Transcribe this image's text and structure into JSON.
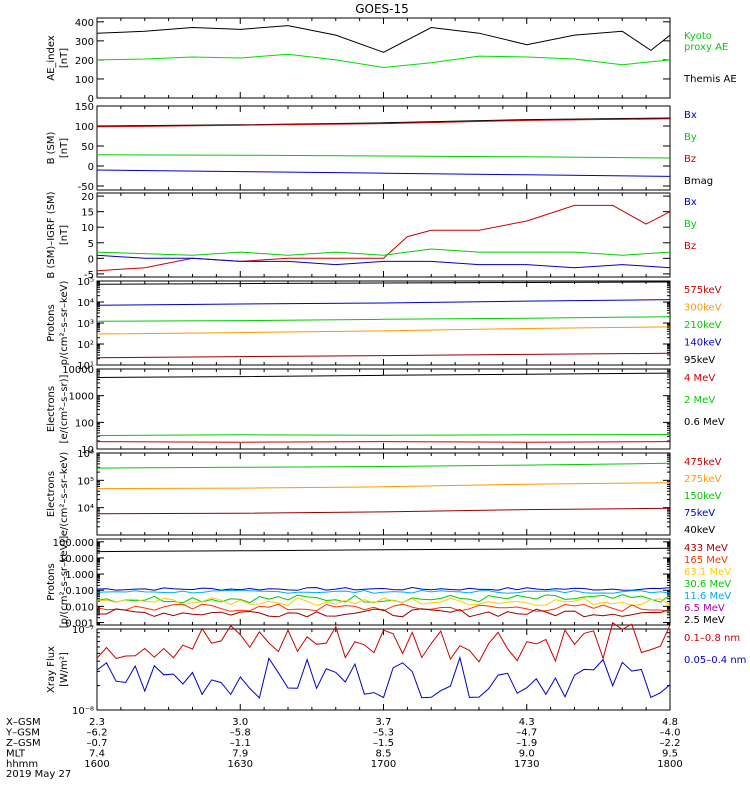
{
  "chart_data": {
    "type": "line",
    "title": "GOES-15",
    "x_ticks": [
      "1600",
      "1630",
      "1700",
      "1730",
      "1800"
    ],
    "xlim": [
      "1600",
      "1800"
    ],
    "panels": [
      {
        "ylabel": [
          "AE_index",
          "[nT]"
        ],
        "scale": "linear",
        "ylim": [
          0,
          420
        ],
        "yticks": [
          "400",
          "300",
          "200",
          "100",
          "0"
        ],
        "yticks_values": [
          400,
          300,
          200,
          100,
          0
        ],
        "legend": [
          {
            "text": "Kyoto",
            "color": "#00cc00"
          },
          {
            "text": "proxy AE",
            "color": "#00cc00"
          },
          {
            "text": "Themis AE",
            "color": "#000000"
          }
        ],
        "series": [
          {
            "color": "#000000",
            "x": [
              "1600",
              "1610",
              "1620",
              "1630",
              "1640",
              "1650",
              "1700",
              "1710",
              "1720",
              "1730",
              "1740",
              "1750",
              "1756",
              "1800"
            ],
            "values": [
              340,
              350,
              370,
              360,
              380,
              330,
              240,
              370,
              340,
              280,
              330,
              350,
              250,
              330
            ]
          },
          {
            "color": "#00dd00",
            "x": [
              "1600",
              "1610",
              "1620",
              "1630",
              "1640",
              "1650",
              "1700",
              "1710",
              "1720",
              "1730",
              "1740",
              "1750",
              "1800"
            ],
            "values": [
              200,
              205,
              215,
              210,
              230,
              200,
              160,
              185,
              220,
              215,
              205,
              175,
              200
            ]
          }
        ]
      },
      {
        "ylabel": [
          "B (SM)",
          "[nT]"
        ],
        "scale": "linear",
        "ylim": [
          -60,
          150
        ],
        "yticks": [
          "150",
          "100",
          "50",
          "0",
          "-50"
        ],
        "yticks_values": [
          150,
          100,
          50,
          0,
          -50
        ],
        "legend": [
          {
            "text": "Bx",
            "color": "#0000cc"
          },
          {
            "text": "By",
            "color": "#00cc00"
          },
          {
            "text": "Bz",
            "color": "#cc0000"
          },
          {
            "text": "Bmag",
            "color": "#000000"
          }
        ],
        "series": [
          {
            "color": "#000000",
            "x": [
              "1600",
              "1630",
              "1700",
              "1730",
              "1800"
            ],
            "values": [
              100,
              103,
              108,
              116,
              120
            ]
          },
          {
            "color": "#cc0000",
            "x": [
              "1600",
              "1630",
              "1700",
              "1730",
              "1800"
            ],
            "values": [
              98,
              102,
              106,
              114,
              118
            ]
          },
          {
            "color": "#00cc00",
            "x": [
              "1600",
              "1630",
              "1700",
              "1730",
              "1800"
            ],
            "values": [
              28,
              27,
              25,
              23,
              20
            ]
          },
          {
            "color": "#0000cc",
            "x": [
              "1600",
              "1630",
              "1700",
              "1730",
              "1800"
            ],
            "values": [
              -10,
              -14,
              -18,
              -22,
              -26
            ]
          }
        ]
      },
      {
        "ylabel": [
          "B (SM)–IGRF (SM)",
          "[nT]"
        ],
        "scale": "linear",
        "ylim": [
          -6,
          21
        ],
        "yticks": [
          "20",
          "15",
          "10",
          "5",
          "0",
          "-5"
        ],
        "yticks_values": [
          20,
          15,
          10,
          5,
          0,
          -5
        ],
        "legend": [
          {
            "text": "Bx",
            "color": "#0000cc"
          },
          {
            "text": "By",
            "color": "#00cc00"
          },
          {
            "text": "Bz",
            "color": "#cc0000"
          }
        ],
        "series": [
          {
            "color": "#cc0000",
            "x": [
              "1600",
              "1610",
              "1620",
              "1630",
              "1640",
              "1650",
              "1700",
              "1705",
              "1710",
              "1720",
              "1730",
              "1740",
              "1748",
              "1755",
              "1800"
            ],
            "values": [
              -4,
              -3,
              0,
              -1,
              0,
              0,
              0,
              7,
              9,
              9,
              12,
              17,
              17,
              11,
              15
            ]
          },
          {
            "color": "#00cc00",
            "x": [
              "1600",
              "1620",
              "1630",
              "1640",
              "1650",
              "1700",
              "1710",
              "1720",
              "1730",
              "1740",
              "1750",
              "1800"
            ],
            "values": [
              2,
              1,
              2,
              1,
              2,
              1,
              3,
              2,
              2,
              2,
              1,
              2
            ]
          },
          {
            "color": "#0000cc",
            "x": [
              "1600",
              "1610",
              "1620",
              "1630",
              "1640",
              "1650",
              "1700",
              "1710",
              "1720",
              "1730",
              "1740",
              "1750",
              "1800"
            ],
            "values": [
              1,
              0,
              0,
              -1,
              -1,
              -2,
              -1,
              -1,
              -2,
              -2,
              -3,
              -2,
              -3
            ]
          }
        ]
      },
      {
        "ylabel": [
          "Protons",
          "p/(cm²–s–sr–keV)"
        ],
        "scale": "log",
        "ylim": [
          10,
          100000
        ],
        "yticks": [
          "10⁵",
          "10⁴",
          "10³",
          "10²",
          "10¹"
        ],
        "yticks_values": [
          100000,
          10000,
          1000,
          100,
          10
        ],
        "legend": [
          {
            "text": "575keV",
            "color": "#cc0000"
          },
          {
            "text": "300keV",
            "color": "#ff9900"
          },
          {
            "text": "210keV",
            "color": "#00cc00"
          },
          {
            "text": "140keV",
            "color": "#0000cc"
          },
          {
            "text": "95keV",
            "color": "#000000"
          }
        ],
        "series": [
          {
            "color": "#000000",
            "x": [
              "1600",
              "1630",
              "1700",
              "1730",
              "1800"
            ],
            "values": [
              70000,
              75000,
              80000,
              85000,
              90000
            ]
          },
          {
            "color": "#0000cc",
            "x": [
              "1600",
              "1630",
              "1700",
              "1730",
              "1800"
            ],
            "values": [
              7000,
              8000,
              9000,
              11000,
              13000
            ]
          },
          {
            "color": "#00cc00",
            "x": [
              "1600",
              "1630",
              "1700",
              "1730",
              "1800"
            ],
            "values": [
              1200,
              1300,
              1500,
              1700,
              2000
            ]
          },
          {
            "color": "#ff9900",
            "x": [
              "1600",
              "1630",
              "1700",
              "1730",
              "1800"
            ],
            "values": [
              300,
              350,
              420,
              550,
              650
            ]
          },
          {
            "color": "#990000",
            "x": [
              "1600",
              "1630",
              "1700",
              "1730",
              "1800"
            ],
            "values": [
              22,
              25,
              28,
              32,
              36
            ]
          }
        ]
      },
      {
        "ylabel": [
          "Electrons",
          "[e/(cm²–s–sr)]"
        ],
        "scale": "log",
        "ylim": [
          10,
          10000
        ],
        "yticks": [
          "10000",
          "1000",
          "100",
          "10"
        ],
        "yticks_values": [
          10000,
          1000,
          100,
          10
        ],
        "legend": [
          {
            "text": "4 MeV",
            "color": "#cc0000"
          },
          {
            "text": "2 MeV",
            "color": "#00cc00"
          },
          {
            "text": "0.6 MeV",
            "color": "#000000"
          }
        ],
        "series": [
          {
            "color": "#000000",
            "x": [
              "1600",
              "1630",
              "1700",
              "1730",
              "1800"
            ],
            "values": [
              4800,
              5200,
              5800,
              6400,
              7000
            ]
          },
          {
            "color": "#00cc00",
            "x": [
              "1600",
              "1630",
              "1700",
              "1730",
              "1800"
            ],
            "values": [
              32,
              34,
              33,
              34,
              35
            ]
          },
          {
            "color": "#cc0000",
            "x": [
              "1600",
              "1630",
              "1700",
              "1730",
              "1800"
            ],
            "values": [
              19,
              18,
              19,
              18,
              19
            ]
          }
        ]
      },
      {
        "ylabel": [
          "Electrons",
          "e/(cm²–s–sr–keV)"
        ],
        "scale": "log",
        "ylim": [
          1000,
          1000000
        ],
        "yticks": [
          "10⁶",
          "10⁵",
          "10⁴"
        ],
        "yticks_values": [
          1000000,
          100000,
          10000
        ],
        "legend": [
          {
            "text": "475keV",
            "color": "#cc0000"
          },
          {
            "text": "275keV",
            "color": "#ff9900"
          },
          {
            "text": "150keV",
            "color": "#00cc00"
          },
          {
            "text": "75keV",
            "color": "#0000cc"
          },
          {
            "text": "40keV",
            "color": "#000000"
          }
        ],
        "series": [
          {
            "color": "#00cc00",
            "x": [
              "1600",
              "1630",
              "1700",
              "1730",
              "1800"
            ],
            "values": [
              280000,
              300000,
              320000,
              360000,
              420000
            ]
          },
          {
            "color": "#ff9900",
            "x": [
              "1600",
              "1630",
              "1700",
              "1730",
              "1800"
            ],
            "values": [
              50000,
              52000,
              58000,
              72000,
              82000
            ]
          },
          {
            "color": "#990000",
            "x": [
              "1600",
              "1630",
              "1700",
              "1730",
              "1800"
            ],
            "values": [
              6000,
              6300,
              7000,
              8500,
              9500
            ]
          }
        ]
      },
      {
        "ylabel": [
          "Protons",
          "[p/(cm²–s–sr–keV)]"
        ],
        "scale": "log",
        "ylim": [
          0.0007,
          150
        ],
        "yticks": [
          "100.000",
          "10.000",
          "1.000",
          "0.100",
          "0.010",
          "0.001"
        ],
        "yticks_values": [
          100,
          10,
          1,
          0.1,
          0.01,
          0.001
        ],
        "legend": [
          {
            "text": "433 MeV",
            "color": "#990000"
          },
          {
            "text": "165 MeV",
            "color": "#ff3300"
          },
          {
            "text": "63.1 MeV",
            "color": "#ffcc00"
          },
          {
            "text": "30.6 MeV",
            "color": "#00cc00"
          },
          {
            "text": "11.6 MeV",
            "color": "#00aaff"
          },
          {
            "text": "6.5 MeV",
            "color": "#aa00aa"
          },
          {
            "text": "2.5 MeV",
            "color": "#000000"
          }
        ],
        "series": [
          {
            "color": "#000000",
            "x": [
              "1600",
              "1630",
              "1700",
              "1730",
              "1800"
            ],
            "values": [
              25,
              28,
              32,
              36,
              40
            ]
          },
          {
            "color": "#0000cc",
            "x": [
              "1600",
              "1800"
            ],
            "values": [
              0.12,
              0.12
            ],
            "noisy": true
          },
          {
            "color": "#00aaff",
            "x": [
              "1600",
              "1800"
            ],
            "values": [
              0.08,
              0.08
            ],
            "noisy": true
          },
          {
            "color": "#00cc00",
            "x": [
              "1600",
              "1800"
            ],
            "values": [
              0.03,
              0.03
            ],
            "noisy": true
          },
          {
            "color": "#ffcc00",
            "x": [
              "1600",
              "1800"
            ],
            "values": [
              0.02,
              0.02
            ],
            "noisy": true
          },
          {
            "color": "#ff3300",
            "x": [
              "1600",
              "1800"
            ],
            "values": [
              0.008,
              0.008
            ],
            "noisy": true
          },
          {
            "color": "#990000",
            "x": [
              "1600",
              "1800"
            ],
            "values": [
              0.004,
              0.004
            ],
            "noisy": true
          }
        ]
      },
      {
        "ylabel": [
          "Xray Flux",
          "[W/m²]"
        ],
        "scale": "log",
        "ylim": [
          1e-08,
          1e-07
        ],
        "yticks": [
          "10⁻⁷",
          "10⁻⁸"
        ],
        "yticks_values": [
          1e-07,
          1e-08
        ],
        "legend": [
          {
            "text": "0.1–0.8 nm",
            "color": "#cc0000"
          },
          {
            "text": "0.05–0.4 nm",
            "color": "#0000cc"
          }
        ],
        "series": [
          {
            "color": "#cc0000",
            "x": [
              "1600",
              "1800"
            ],
            "values": [
              7e-08,
              7e-08
            ],
            "noisy": true
          },
          {
            "color": "#0000cc",
            "x": [
              "1600",
              "1800"
            ],
            "values": [
              2.5e-08,
              2.5e-08
            ],
            "noisy": true
          }
        ]
      }
    ],
    "footer": {
      "rows": [
        {
          "label": "X–GSM",
          "values": [
            "2.3",
            "3.0",
            "3.7",
            "4.3",
            "4.8"
          ]
        },
        {
          "label": "Y–GSM",
          "values": [
            "–6.2",
            "–5.8",
            "–5.3",
            "–4.7",
            "–4.0"
          ]
        },
        {
          "label": "Z–GSM",
          "values": [
            "–0.7",
            "–1.1",
            "–1.5",
            "–1.9",
            "–2.2"
          ]
        },
        {
          "label": "MLT",
          "values": [
            "7.4",
            "7.9",
            "8.5",
            "9.0",
            "9.5"
          ]
        },
        {
          "label": "hhmm",
          "values": [
            "1600",
            "1630",
            "1700",
            "1730",
            "1800"
          ]
        }
      ],
      "date": "2019 May 27"
    }
  }
}
